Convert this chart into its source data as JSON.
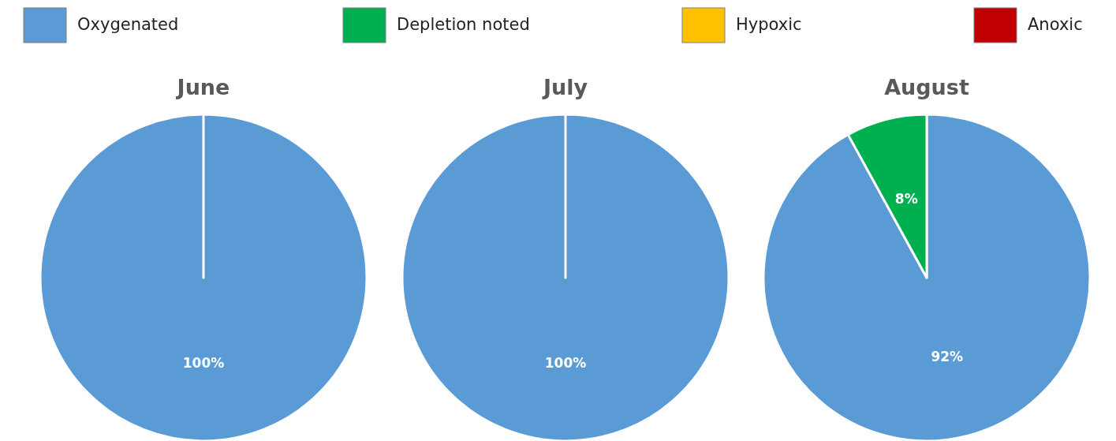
{
  "chart_data": [
    {
      "type": "pie",
      "title": "June",
      "categories": [
        "Oxygenated",
        "Depletion noted",
        "Hypoxic",
        "Anoxic"
      ],
      "values": [
        100,
        0,
        0,
        0
      ],
      "colors": [
        "#5b9bd5",
        "#00b050",
        "#ffc000",
        "#c00000"
      ],
      "value_labels": [
        "100%",
        null,
        null,
        null
      ],
      "legend": "top"
    },
    {
      "type": "pie",
      "title": "July",
      "categories": [
        null,
        null,
        null,
        null
      ],
      "values": [
        100,
        0,
        0,
        0
      ],
      "colors": [
        "#5b9bd5",
        "#00b050",
        "#ffc000",
        "#c00000"
      ],
      "value_labels": [
        "100%",
        null,
        null,
        null
      ]
    },
    {
      "type": "pie",
      "title": "August",
      "categories": [
        null,
        null,
        null,
        null
      ],
      "values": [
        92,
        8,
        0,
        0
      ],
      "colors": [
        "#5b9bd5",
        "#00b050",
        "#ffc000",
        "#c00000"
      ],
      "value_labels": [
        "92%",
        "8%",
        null,
        null
      ]
    }
  ]
}
